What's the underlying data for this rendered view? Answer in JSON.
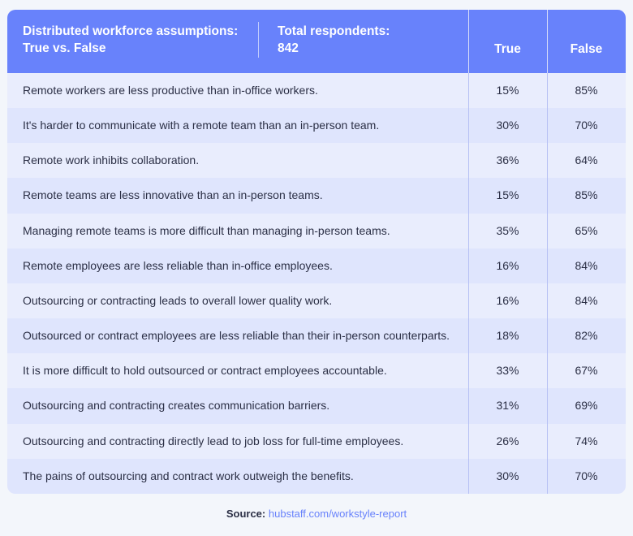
{
  "header": {
    "title_line1": "Distributed workforce assumptions:",
    "title_line2": "True vs. False",
    "total_line1": "Total respondents:",
    "total_line2": "842",
    "col_true": "True",
    "col_false": "False"
  },
  "colors": {
    "header_bg": "#6882fb",
    "row_light": "#e9edfd",
    "row_alt": "#dfe5fd",
    "link": "#6882fb"
  },
  "chart_data": {
    "type": "table",
    "columns": [
      "True",
      "False"
    ],
    "rows": [
      {
        "statement": "Remote workers are less productive than in-office workers.",
        "true": "15%",
        "false": "85%"
      },
      {
        "statement": "It's harder to communicate with a remote team than an in-person team.",
        "true": "30%",
        "false": "70%"
      },
      {
        "statement": "Remote work inhibits collaboration.",
        "true": "36%",
        "false": "64%"
      },
      {
        "statement": "Remote teams are less innovative than an in-person teams.",
        "true": "15%",
        "false": "85%"
      },
      {
        "statement": "Managing remote teams is more difficult than managing in-person teams.",
        "true": "35%",
        "false": "65%"
      },
      {
        "statement": "Remote employees are less reliable than in-office employees.",
        "true": "16%",
        "false": "84%"
      },
      {
        "statement": "Outsourcing or contracting leads to overall lower quality work.",
        "true": "16%",
        "false": "84%"
      },
      {
        "statement": "Outsourced or contract employees are less reliable than their in-person counterparts.",
        "true": "18%",
        "false": "82%"
      },
      {
        "statement": "It is more difficult to hold outsourced or contract employees accountable.",
        "true": "33%",
        "false": "67%"
      },
      {
        "statement": "Outsourcing and contracting creates communication barriers.",
        "true": "31%",
        "false": "69%"
      },
      {
        "statement": "Outsourcing and contracting directly lead to job loss for full-time employees.",
        "true": "26%",
        "false": "74%"
      },
      {
        "statement": "The pains of outsourcing and contract work outweigh the benefits.",
        "true": "30%",
        "false": "70%"
      }
    ]
  },
  "source": {
    "label": "Source:",
    "link": "hubstaff.com/workstyle-report"
  }
}
